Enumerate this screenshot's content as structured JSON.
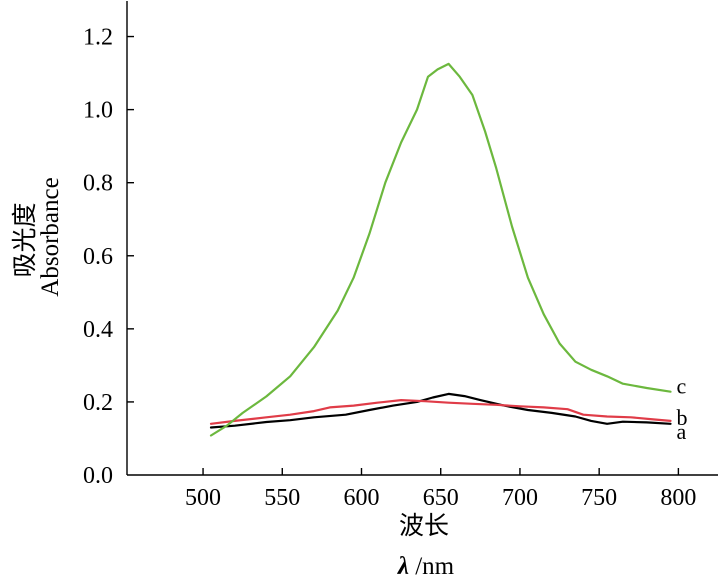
{
  "chart_data": {
    "type": "line",
    "title": "",
    "ylabel_cn": "吸光度",
    "ylabel_en": "Absorbance",
    "xlabel_cn": "波长",
    "xlabel_symbol": "λ",
    "xlabel_unit": " /nm",
    "xlim": [
      452,
      825
    ],
    "ylim": [
      0,
      1.3
    ],
    "xticks": [
      500,
      550,
      600,
      650,
      700,
      750,
      800
    ],
    "xtick_labels": [
      "500",
      "550",
      "600",
      "650",
      "700",
      "750",
      "800"
    ],
    "yticks": [
      0,
      0.2,
      0.4,
      0.6,
      0.8,
      1.0,
      1.2
    ],
    "ytick_labels": [
      "0.0",
      "0.2",
      "0.4",
      "0.6",
      "0.8",
      "1.0",
      "1.2"
    ],
    "grid": false,
    "series": [
      {
        "name": "a",
        "color": "#000000",
        "x": [
          505,
          520,
          540,
          555,
          570,
          590,
          605,
          620,
          635,
          645,
          655,
          665,
          675,
          690,
          705,
          720,
          735,
          745,
          755,
          765,
          780,
          795
        ],
        "y": [
          0.13,
          0.135,
          0.145,
          0.15,
          0.158,
          0.165,
          0.178,
          0.19,
          0.2,
          0.212,
          0.222,
          0.216,
          0.205,
          0.19,
          0.178,
          0.17,
          0.16,
          0.148,
          0.14,
          0.146,
          0.144,
          0.14
        ]
      },
      {
        "name": "b",
        "color": "#e03c48",
        "x": [
          505,
          520,
          540,
          555,
          570,
          580,
          595,
          610,
          625,
          640,
          655,
          670,
          685,
          700,
          715,
          730,
          740,
          755,
          770,
          785,
          795
        ],
        "y": [
          0.14,
          0.148,
          0.158,
          0.165,
          0.175,
          0.185,
          0.19,
          0.198,
          0.205,
          0.202,
          0.198,
          0.195,
          0.192,
          0.188,
          0.185,
          0.18,
          0.165,
          0.16,
          0.158,
          0.152,
          0.148
        ]
      },
      {
        "name": "c",
        "color": "#6cb83e",
        "x": [
          505,
          515,
          525,
          540,
          555,
          570,
          585,
          595,
          605,
          615,
          625,
          635,
          642,
          648,
          655,
          662,
          670,
          678,
          685,
          695,
          705,
          715,
          725,
          735,
          745,
          755,
          765,
          780,
          795
        ],
        "y": [
          0.108,
          0.135,
          0.17,
          0.215,
          0.27,
          0.35,
          0.45,
          0.54,
          0.66,
          0.8,
          0.91,
          1.0,
          1.09,
          1.11,
          1.125,
          1.09,
          1.04,
          0.94,
          0.84,
          0.68,
          0.54,
          0.44,
          0.36,
          0.31,
          0.288,
          0.27,
          0.25,
          0.238,
          0.228
        ]
      }
    ]
  }
}
